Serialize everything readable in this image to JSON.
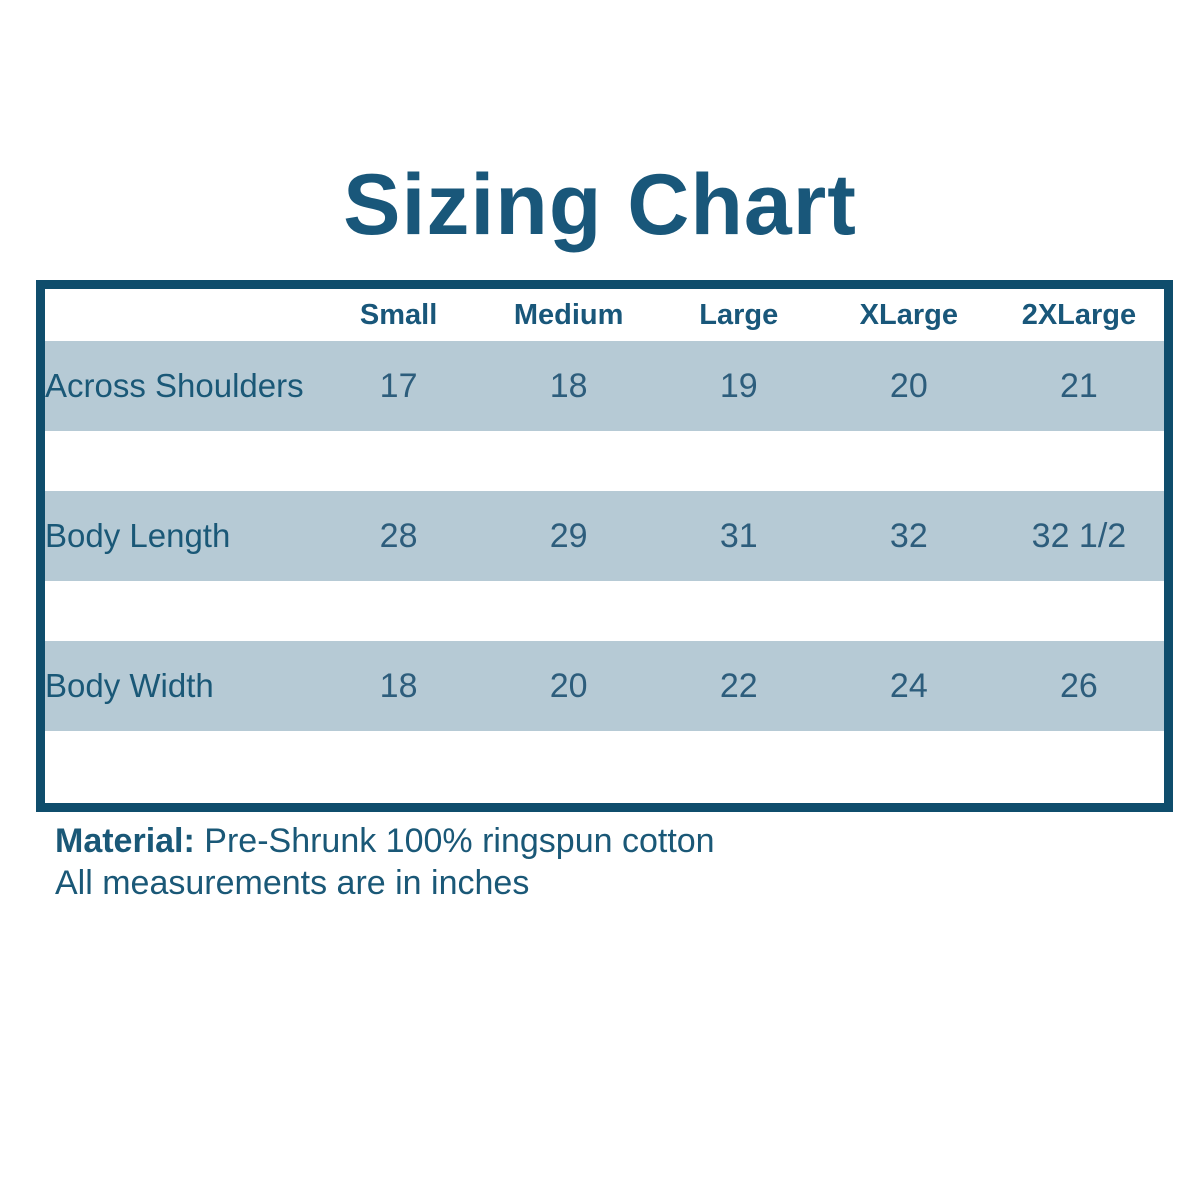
{
  "page": {
    "title": "Sizing Chart"
  },
  "table": {
    "size_columns": [
      "Small",
      "Medium",
      "Large",
      "XLarge",
      "2XLarge"
    ],
    "rows": [
      {
        "label": "Across Shoulders",
        "values": [
          "17",
          "18",
          "19",
          "20",
          "21"
        ]
      },
      {
        "label": "Body Length",
        "values": [
          "28",
          "29",
          "31",
          "32",
          "32 1/2"
        ]
      },
      {
        "label": "Body Width",
        "values": [
          "18",
          "20",
          "22",
          "24",
          "26"
        ]
      }
    ]
  },
  "footer": {
    "material_label": "Material:",
    "material_text": "Pre-Shrunk 100% ringspun cotton",
    "measurements_note": "All measurements are in inches"
  },
  "colors": {
    "heading_text": "#19577a",
    "label_text": "#1a5877",
    "value_text": "#2d5d7c",
    "table_border": "#0f4d6c",
    "row_background": "#b6cad5",
    "page_background": "#ffffff"
  },
  "chart_data": {
    "type": "table",
    "title": "Sizing Chart",
    "categories": [
      "Small",
      "Medium",
      "Large",
      "XLarge",
      "2XLarge"
    ],
    "series": [
      {
        "name": "Across Shoulders",
        "values": [
          17,
          18,
          19,
          20,
          21
        ]
      },
      {
        "name": "Body Length",
        "values": [
          28,
          29,
          31,
          32,
          32.5
        ]
      },
      {
        "name": "Body Width",
        "values": [
          18,
          20,
          22,
          24,
          26
        ]
      }
    ],
    "units": "inches",
    "notes": [
      "Material: Pre-Shrunk 100% ringspun cotton",
      "All measurements are in inches"
    ]
  }
}
